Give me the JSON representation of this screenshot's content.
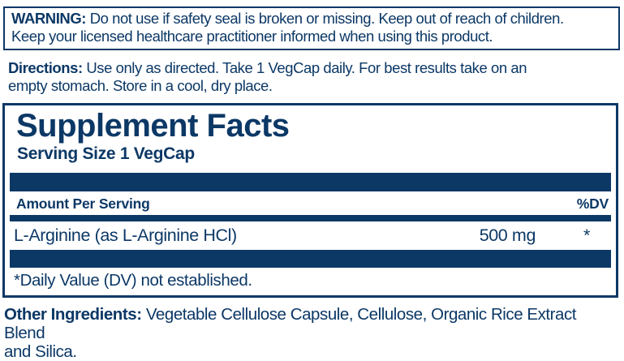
{
  "colors": {
    "navy": "#0c3866",
    "background": "#ffffff"
  },
  "warning": {
    "label": "WARNING:",
    "line1": "Do not use if safety seal is broken or missing. Keep out of reach of children.",
    "line2": "Keep your licensed healthcare practitioner informed when using this product."
  },
  "directions": {
    "label": "Directions:",
    "line1": "Use only as directed. Take 1 VegCap daily. For best results take on an",
    "line2": "empty stomach. Store in a cool, dry place."
  },
  "supplement_facts": {
    "title": "Supplement Facts",
    "serving_size": "Serving Size 1 VegCap",
    "columns": {
      "amount": "Amount Per Serving",
      "dv": "%DV"
    },
    "rows": [
      {
        "name": "L-Arginine (as L-Arginine HCl)",
        "amount": "500 mg",
        "dv": "*"
      }
    ],
    "footnote": "*Daily Value (DV) not established."
  },
  "other_ingredients": {
    "label": "Other Ingredients:",
    "line1": "Vegetable Cellulose Capsule, Cellulose, Organic Rice Extract Blend",
    "line2": "and Silica."
  }
}
